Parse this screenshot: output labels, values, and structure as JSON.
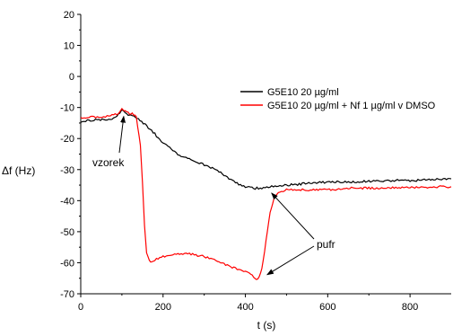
{
  "chart_data": {
    "type": "line",
    "xlabel": "t (s)",
    "ylabel": "Δf (Hz)",
    "xlim": [
      0,
      900
    ],
    "ylim": [
      -70,
      20
    ],
    "xticks": [
      0,
      200,
      400,
      600,
      800
    ],
    "yticks": [
      20,
      10,
      0,
      -10,
      -20,
      -30,
      -40,
      -50,
      -60,
      -70
    ],
    "grid": false,
    "legend_position": "right",
    "series": [
      {
        "name": "G5E10 20 µg/ml",
        "color": "#000000",
        "x": [
          0,
          20,
          40,
          60,
          80,
          95,
          100,
          105,
          115,
          125,
          140,
          160,
          180,
          200,
          220,
          240,
          260,
          280,
          300,
          320,
          340,
          360,
          380,
          400,
          420,
          440,
          460,
          480,
          500,
          550,
          600,
          650,
          700,
          750,
          800,
          850,
          900
        ],
        "values": [
          -14.5,
          -14.2,
          -14.0,
          -13.8,
          -13.5,
          -12.0,
          -10.5,
          -11.5,
          -12.5,
          -12.8,
          -13.5,
          -16.0,
          -18.5,
          -21.5,
          -23.5,
          -25.5,
          -26.5,
          -27.5,
          -28.5,
          -29.5,
          -31.0,
          -33.0,
          -34.5,
          -35.5,
          -36.0,
          -36.0,
          -35.5,
          -35.5,
          -35.0,
          -34.5,
          -34.0,
          -34.0,
          -33.8,
          -33.5,
          -33.5,
          -33.3,
          -33.0
        ]
      },
      {
        "name": "G5E10 20 µg/ml + Nf 1 µg/ml v DMSO",
        "color": "#ff0000",
        "x": [
          0,
          20,
          40,
          60,
          80,
          95,
          100,
          105,
          115,
          125,
          135,
          145,
          150,
          155,
          160,
          170,
          180,
          200,
          220,
          240,
          260,
          280,
          300,
          320,
          340,
          360,
          380,
          400,
          410,
          420,
          430,
          440,
          450,
          460,
          470,
          480,
          500,
          550,
          600,
          650,
          700,
          750,
          800,
          850,
          900
        ],
        "values": [
          -13.5,
          -13.2,
          -13.0,
          -12.8,
          -12.5,
          -11.5,
          -10.0,
          -11.0,
          -11.8,
          -12.0,
          -13.0,
          -22.0,
          -34.0,
          -48.0,
          -57.0,
          -60.0,
          -59.0,
          -58.0,
          -57.5,
          -57.0,
          -57.0,
          -57.5,
          -58.0,
          -59.0,
          -60.0,
          -61.0,
          -62.0,
          -63.0,
          -63.5,
          -64.5,
          -65.5,
          -62.0,
          -53.0,
          -44.0,
          -39.0,
          -37.5,
          -36.5,
          -36.5,
          -36.5,
          -36.0,
          -36.0,
          -35.8,
          -35.8,
          -35.6,
          -35.5
        ]
      }
    ],
    "annotations": [
      {
        "text": "vzorek",
        "points_to": [
          100,
          -12
        ]
      },
      {
        "text": "pufr",
        "points_to": [
          [
            455,
            -37
          ],
          [
            440,
            -65
          ]
        ]
      }
    ]
  }
}
